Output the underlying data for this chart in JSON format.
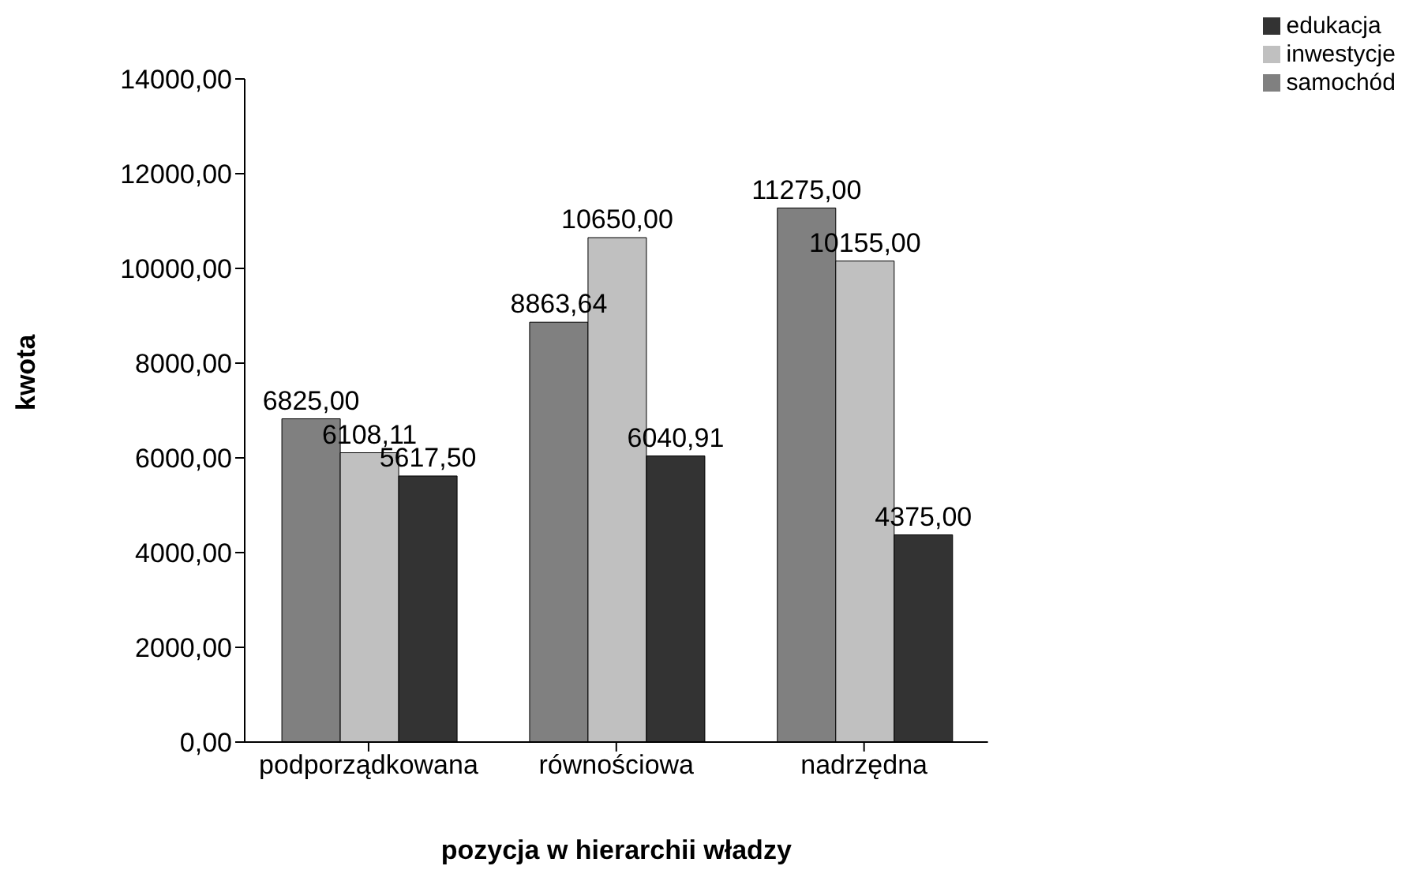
{
  "chart_data": {
    "type": "bar",
    "xlabel": "pozycja w hierarchii władzy",
    "ylabel": "kwota",
    "categories": [
      "podporządkowana",
      "równościowa",
      "nadrzędna"
    ],
    "series": [
      {
        "name": "samochód",
        "color": "#808080",
        "values": [
          6825,
          8863.64,
          11275
        ],
        "value_labels": [
          "6825,00",
          "8863,64",
          "11275,00"
        ]
      },
      {
        "name": "inwestycje",
        "color": "#c0c0c0",
        "values": [
          6108.11,
          10650,
          10155
        ],
        "value_labels": [
          "6108,11",
          "10650,00",
          "10155,00"
        ]
      },
      {
        "name": "edukacja",
        "color": "#333333",
        "values": [
          5617.5,
          6040.91,
          4375
        ],
        "value_labels": [
          "5617,50",
          "6040,91",
          "4375,00"
        ]
      }
    ],
    "ylim": [
      0,
      14000
    ],
    "yticks": [
      {
        "value": 0,
        "label": "0,00"
      },
      {
        "value": 2000,
        "label": "2000,00"
      },
      {
        "value": 4000,
        "label": "4000,00"
      },
      {
        "value": 6000,
        "label": "6000,00"
      },
      {
        "value": 8000,
        "label": "8000,00"
      },
      {
        "value": 10000,
        "label": "10000,00"
      },
      {
        "value": 12000,
        "label": "12000,00"
      },
      {
        "value": 14000,
        "label": "14000,00"
      }
    ],
    "legend": "top right",
    "grid": false
  }
}
